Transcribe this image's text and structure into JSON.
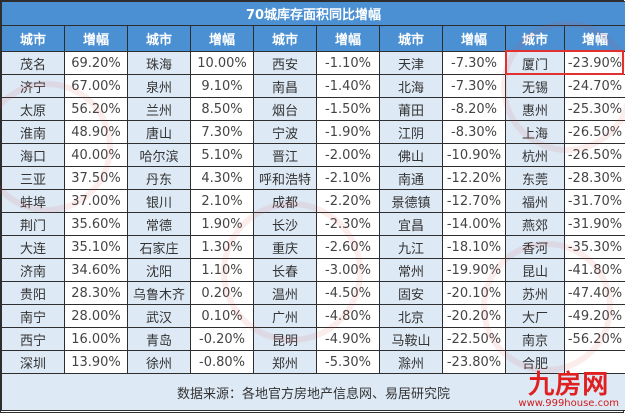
{
  "table": {
    "title": "70城库存面积同比增幅",
    "headers": [
      "城市",
      "增幅",
      "城市",
      "增幅",
      "城市",
      "增幅",
      "城市",
      "增幅",
      "城市",
      "增幅"
    ],
    "rows": [
      [
        "茂名",
        "69.20%",
        "珠海",
        "10.00%",
        "西安",
        "-1.10%",
        "天津",
        "-7.30%",
        "厦门",
        "-23.90%"
      ],
      [
        "济宁",
        "67.00%",
        "泉州",
        "9.10%",
        "南昌",
        "-1.40%",
        "北海",
        "-7.30%",
        "无锡",
        "-24.70%"
      ],
      [
        "太原",
        "56.20%",
        "兰州",
        "8.50%",
        "烟台",
        "-1.50%",
        "莆田",
        "-8.20%",
        "惠州",
        "-25.30%"
      ],
      [
        "淮南",
        "48.90%",
        "唐山",
        "7.30%",
        "宁波",
        "-1.90%",
        "江阴",
        "-8.30%",
        "上海",
        "-26.50%"
      ],
      [
        "海口",
        "40.00%",
        "哈尔滨",
        "5.10%",
        "晋江",
        "-2.00%",
        "佛山",
        "-10.90%",
        "杭州",
        "-26.50%"
      ],
      [
        "三亚",
        "37.50%",
        "丹东",
        "4.30%",
        "呼和浩特",
        "-2.10%",
        "南通",
        "-12.20%",
        "东莞",
        "-28.30%"
      ],
      [
        "蚌埠",
        "37.00%",
        "银川",
        "2.10%",
        "成都",
        "-2.20%",
        "景德镇",
        "-12.70%",
        "福州",
        "-31.70%"
      ],
      [
        "荆门",
        "35.60%",
        "常德",
        "1.90%",
        "长沙",
        "-2.30%",
        "宜昌",
        "-14.00%",
        "燕郊",
        "-31.90%"
      ],
      [
        "大连",
        "35.10%",
        "石家庄",
        "1.30%",
        "重庆",
        "-2.60%",
        "九江",
        "-18.10%",
        "香河",
        "-35.30%"
      ],
      [
        "济南",
        "34.60%",
        "沈阳",
        "1.10%",
        "长春",
        "-3.00%",
        "常州",
        "-19.90%",
        "昆山",
        "-41.80%"
      ],
      [
        "贵阳",
        "28.30%",
        "乌鲁木齐",
        "0.20%",
        "温州",
        "-4.50%",
        "固安",
        "-20.10%",
        "苏州",
        "-47.40%"
      ],
      [
        "南宁",
        "28.00%",
        "武汉",
        "0.10%",
        "广州",
        "-4.80%",
        "北京",
        "-20.20%",
        "大厂",
        "-49.20%"
      ],
      [
        "西宁",
        "16.00%",
        "青岛",
        "-0.20%",
        "昆明",
        "-4.90%",
        "马鞍山",
        "-22.50%",
        "南京",
        "-56.20%"
      ],
      [
        "深圳",
        "13.90%",
        "徐州",
        "-0.80%",
        "郑州",
        "-5.30%",
        "滁州",
        "-23.80%",
        "合肥",
        ""
      ]
    ],
    "highlighted_row": 0,
    "highlighted_city": "厦门",
    "highlighted_value": "-23.90%",
    "footer": "数据来源：各地官方房地产信息网、易居研究院"
  },
  "watermark": {
    "logo_text": "九房网",
    "url": "www.999house.com"
  },
  "colors": {
    "header_bg": "#4a90d3",
    "city_cell_bg": "#dde9f5",
    "value_cell_bg": "#ffffff",
    "highlight_border": "#e03030",
    "logo_red": "#e02020"
  }
}
